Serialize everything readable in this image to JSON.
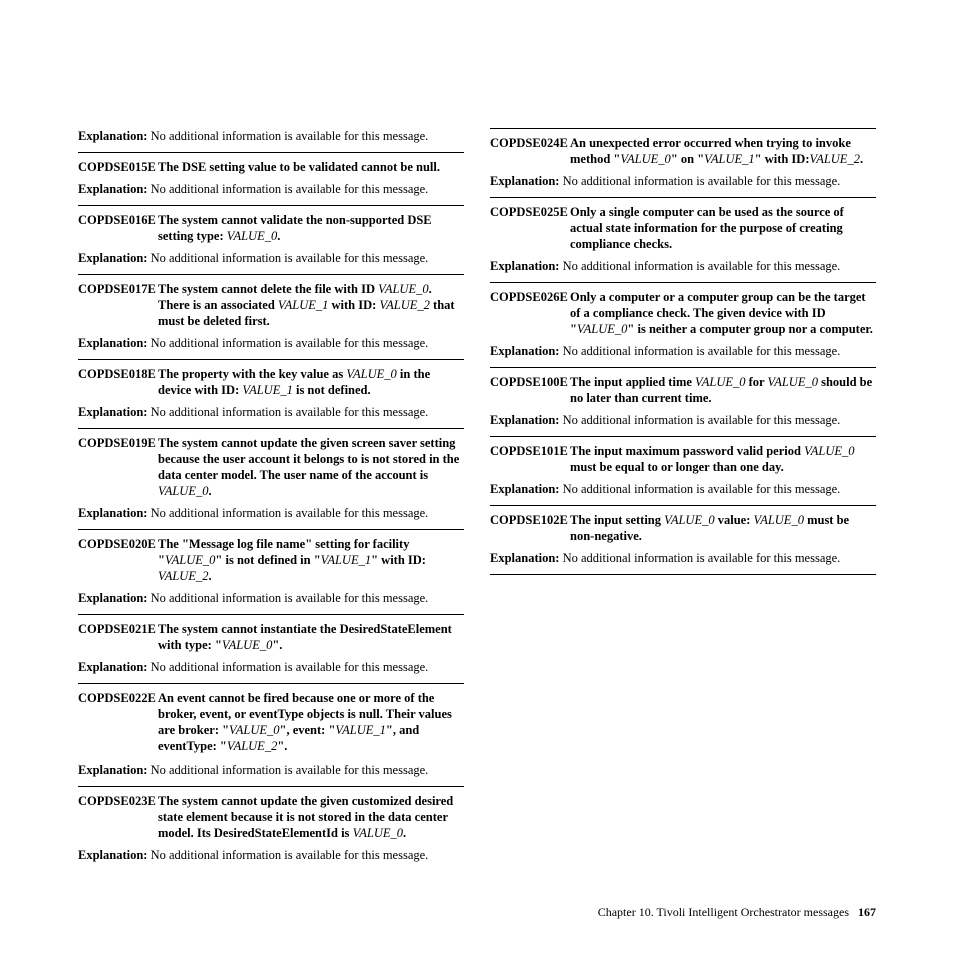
{
  "footer": {
    "chapter": "Chapter 10. Tivoli Intelligent Orchestrator messages",
    "page": "167"
  },
  "expl_label": "Explanation:",
  "expl_text": "No additional information is available for this message.",
  "leading_expl": true,
  "entries": [
    {
      "code": "COPDSE015E",
      "parts": [
        {
          "t": "The DSE setting value to be validated cannot be null."
        }
      ]
    },
    {
      "code": "COPDSE016E",
      "parts": [
        {
          "t": "The system cannot validate the non-supported DSE setting type: "
        },
        {
          "v": "VALUE_0"
        },
        {
          "t": "."
        }
      ]
    },
    {
      "code": "COPDSE017E",
      "parts": [
        {
          "t": "The system cannot delete the file with ID "
        },
        {
          "v": "VALUE_0"
        },
        {
          "t": ". There is an associated "
        },
        {
          "v": "VALUE_1"
        },
        {
          "t": " with ID: "
        },
        {
          "v": "VALUE_2"
        },
        {
          "t": " that must be deleted first."
        }
      ]
    },
    {
      "code": "COPDSE018E",
      "parts": [
        {
          "t": "The property with the key value as "
        },
        {
          "v": "VALUE_0"
        },
        {
          "t": " in the device with ID: "
        },
        {
          "v": "VALUE_1"
        },
        {
          "t": " is not defined."
        }
      ]
    },
    {
      "code": "COPDSE019E",
      "parts": [
        {
          "t": "The system cannot update the given screen saver setting because the user account it belongs to is not stored in the data center model. The user name of the account is "
        },
        {
          "v": "VALUE_0"
        },
        {
          "t": "."
        }
      ]
    },
    {
      "code": "COPDSE020E",
      "parts": [
        {
          "t": "The \"Message log file name\" setting for facility \""
        },
        {
          "v": "VALUE_0"
        },
        {
          "t": "\" is not defined in \""
        },
        {
          "v": "VALUE_1"
        },
        {
          "t": "\" with ID: "
        },
        {
          "v": "VALUE_2"
        },
        {
          "t": "."
        }
      ]
    },
    {
      "code": "COPDSE021E",
      "parts": [
        {
          "t": "The system cannot instantiate the DesiredStateElement with type: \""
        },
        {
          "v": "VALUE_0"
        },
        {
          "t": "\"."
        }
      ]
    },
    {
      "code": "COPDSE022E",
      "parts": [
        {
          "t": "An event cannot be fired because one or more of the broker, event, or eventType objects is null. Their values are broker: \""
        },
        {
          "v": "VALUE_0"
        },
        {
          "t": "\", event: \""
        },
        {
          "v": "VALUE_1"
        },
        {
          "t": "\", and eventType: \""
        },
        {
          "v": "VALUE_2"
        },
        {
          "t": "\"."
        }
      ],
      "no_expl_after": true,
      "no_hr_after": true
    },
    {
      "code": "COPDSE023E",
      "parts": [
        {
          "t": "The system cannot update the given customized desired state element because it is not stored in the data center model. Its DesiredStateElementId is "
        },
        {
          "v": "VALUE_0"
        },
        {
          "t": "."
        }
      ],
      "expl_before": true
    },
    {
      "code": "COPDSE024E",
      "parts": [
        {
          "t": "An unexpected error occurred when trying to invoke method \""
        },
        {
          "v": "VALUE_0"
        },
        {
          "t": "\" on \""
        },
        {
          "v": "VALUE_1"
        },
        {
          "t": "\" with ID:"
        },
        {
          "v": "VALUE_2"
        },
        {
          "t": "."
        }
      ]
    },
    {
      "code": "COPDSE025E",
      "parts": [
        {
          "t": "Only a single computer can be used as the source of actual state information for the purpose of creating compliance checks."
        }
      ]
    },
    {
      "code": "COPDSE026E",
      "parts": [
        {
          "t": "Only a computer or a computer group can be the target of a compliance check. The given device with ID \""
        },
        {
          "v": "VALUE_0"
        },
        {
          "t": "\" is neither a computer group nor a computer."
        }
      ]
    },
    {
      "code": "COPDSE100E",
      "parts": [
        {
          "t": "The input applied time "
        },
        {
          "v": "VALUE_0"
        },
        {
          "t": " for "
        },
        {
          "v": "VALUE_0"
        },
        {
          "t": " should be no later than current time."
        }
      ]
    },
    {
      "code": "COPDSE101E",
      "parts": [
        {
          "t": "The input maximum password valid period "
        },
        {
          "v": "VALUE_0"
        },
        {
          "t": " must be equal to or longer than one day."
        }
      ]
    },
    {
      "code": "COPDSE102E",
      "parts": [
        {
          "t": "The input setting "
        },
        {
          "v": "VALUE_0"
        },
        {
          "t": " value: "
        },
        {
          "v": "VALUE_0"
        },
        {
          "t": " must be non-negative."
        }
      ],
      "trailing_hr": true
    }
  ]
}
